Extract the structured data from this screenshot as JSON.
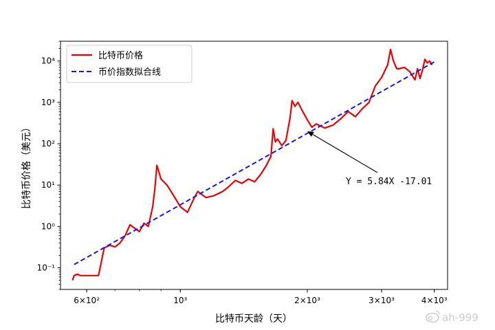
{
  "chart_data": {
    "type": "line",
    "xlabel": "比特币天龄（天）",
    "ylabel": "比特币价格（美元）",
    "x_scale": "log",
    "y_scale": "log",
    "xlim": [
      520,
      4300
    ],
    "ylim": [
      0.03,
      30000
    ],
    "xticks": [
      {
        "value": 600,
        "label": "6×10²"
      },
      {
        "value": 1000,
        "label": "10³"
      },
      {
        "value": 2000,
        "label": "2×10³"
      },
      {
        "value": 3000,
        "label": "3×10³"
      },
      {
        "value": 4000,
        "label": "4×10³"
      }
    ],
    "yticks": [
      {
        "value": 0.1,
        "label": "10⁻¹"
      },
      {
        "value": 1,
        "label": "10⁰"
      },
      {
        "value": 10,
        "label": "10¹"
      },
      {
        "value": 100,
        "label": "10²"
      },
      {
        "value": 1000,
        "label": "10³"
      },
      {
        "value": 10000,
        "label": "10⁴"
      }
    ],
    "grid": false,
    "legend_position": "top-left",
    "series": [
      {
        "name": "比特币价格",
        "color": "#ee0000",
        "style": "solid",
        "x": [
          555,
          560,
          570,
          580,
          600,
          620,
          640,
          660,
          680,
          700,
          720,
          740,
          760,
          780,
          800,
          820,
          840,
          860,
          870,
          880,
          900,
          930,
          960,
          1000,
          1040,
          1080,
          1100,
          1150,
          1200,
          1260,
          1300,
          1350,
          1400,
          1450,
          1500,
          1550,
          1600,
          1640,
          1660,
          1680,
          1700,
          1740,
          1780,
          1820,
          1840,
          1870,
          1900,
          1950,
          2000,
          2050,
          2100,
          2200,
          2300,
          2400,
          2500,
          2600,
          2700,
          2800,
          2900,
          3000,
          3100,
          3150,
          3200,
          3230,
          3260,
          3300,
          3400,
          3500,
          3600,
          3650,
          3700,
          3750,
          3800,
          3850,
          3900,
          3950
        ],
        "y": [
          0.05,
          0.065,
          0.07,
          0.065,
          0.065,
          0.065,
          0.065,
          0.3,
          0.35,
          0.32,
          0.4,
          0.6,
          1.1,
          0.9,
          0.75,
          1.2,
          1.0,
          3.0,
          8.0,
          30.0,
          14.0,
          10.0,
          6.0,
          3.0,
          2.2,
          5.0,
          7.0,
          5.0,
          5.5,
          7.0,
          9.0,
          13.0,
          11.0,
          14.0,
          12.0,
          18.0,
          30.0,
          50.0,
          230.0,
          110.0,
          130.0,
          90.0,
          120.0,
          420.0,
          1100.0,
          800.0,
          1000.0,
          600.0,
          380.0,
          250.0,
          300.0,
          240.0,
          280.0,
          400.0,
          600.0,
          450.0,
          700.0,
          1000.0,
          2500.0,
          4000.0,
          8000.0,
          19000.0,
          10000.0,
          8000.0,
          6500.0,
          6500.0,
          7000.0,
          5500.0,
          3500.0,
          6500.0,
          3800.0,
          6000.0,
          11000.0,
          9000.0,
          10000.0,
          8000.0
        ]
      },
      {
        "name": "币价指数拟合线",
        "color": "#1515ee",
        "style": "dashed",
        "x": [
          560,
          4000
        ],
        "y": [
          0.12,
          9500
        ]
      }
    ],
    "annotations": [
      {
        "text": "Y = 5.84X -17.01",
        "arrow_to": {
          "x": 2000,
          "y": 200
        }
      }
    ]
  },
  "watermark": "ah-999"
}
